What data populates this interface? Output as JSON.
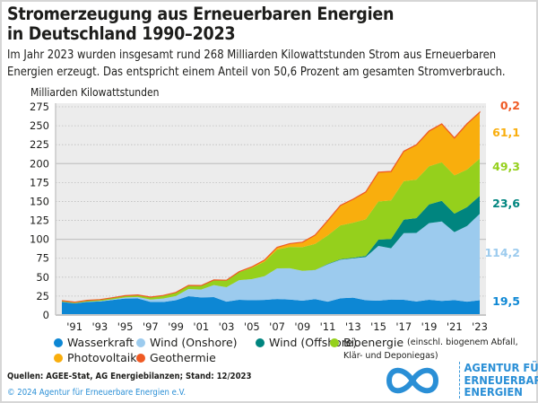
{
  "title_line1": "Stromerzeugung aus Erneuerbaren Energien",
  "title_line2": "in Deutschland 1990–2023",
  "subtitle_line1": "Im Jahr 2023 wurden insgesamt rund 268 Milliarden Kilowattstunden Strom aus Erneuerbaren",
  "subtitle_line2": "Energien erzeugt. Das entspricht einem Anteil von 50,6 Prozent am gesamten Stromverbrauch.",
  "legend": {
    "wasser": "Wasserkraft",
    "onshore": "Wind (Onshore)",
    "offshore": "Wind (Offshore)",
    "bio": "Bioenergie",
    "bio_note1": "(einschl. biogenem Abfall,",
    "bio_note2": "Klär- und Deponiegas)",
    "pv": "Photovoltaik",
    "geo": "Geothermie"
  },
  "source": "Quellen: AGEE-Stat, AG Energiebilanzen; Stand: 12/2023",
  "copyright": "© 2024 Agentur für Erneuerbare Energien e.V.",
  "logo": {
    "line1": "AGENTUR FÜR",
    "line2": "ERNEUERBARE",
    "line3": "ENERGIEN"
  },
  "chart_data": {
    "type": "area",
    "stacked": true,
    "title": "Stromerzeugung aus Erneuerbaren Energien in Deutschland 1990–2023",
    "ylabel": "Milliarden Kilowattstunden",
    "xlabel": "",
    "ylim": [
      0,
      275
    ],
    "yticks": [
      "0",
      "25",
      "50",
      "75",
      "100",
      "125",
      "150",
      "175",
      "200",
      "225",
      "250",
      "275"
    ],
    "xticks": [
      "'91",
      "'93",
      "'95",
      "'97",
      "'99",
      "'01",
      "'03",
      "'05",
      "'07",
      "'09",
      "'11",
      "'13",
      "'15",
      "'17",
      "'19",
      "'21",
      "'23"
    ],
    "grid": true,
    "legend_position": "bottom",
    "x": [
      1990,
      1991,
      1992,
      1993,
      1994,
      1995,
      1996,
      1997,
      1998,
      1999,
      2000,
      2001,
      2002,
      2003,
      2004,
      2005,
      2006,
      2007,
      2008,
      2009,
      2010,
      2011,
      2012,
      2013,
      2014,
      2015,
      2016,
      2017,
      2018,
      2019,
      2020,
      2021,
      2022,
      2023
    ],
    "series": [
      {
        "name": "Wasserkraft",
        "color": "#0d87d4",
        "end_label": "19,5",
        "values": [
          17.4,
          15.4,
          17.4,
          17.9,
          19.9,
          21.8,
          21.9,
          17.4,
          17.2,
          19.6,
          24.9,
          23.2,
          23.7,
          17.7,
          20.1,
          19.6,
          20.0,
          21.2,
          20.4,
          19.0,
          21.0,
          17.7,
          22.1,
          23.0,
          19.6,
          19.0,
          20.5,
          20.2,
          18.0,
          20.2,
          18.7,
          19.7,
          17.6,
          19.5
        ]
      },
      {
        "name": "Wind (Onshore)",
        "color": "#9ccbee",
        "end_label": "114,2",
        "values": [
          0.07,
          0.1,
          0.28,
          0.6,
          0.9,
          1.5,
          2.0,
          3.0,
          4.6,
          5.5,
          9.5,
          10.5,
          15.8,
          19.1,
          26.0,
          27.8,
          31.3,
          40.5,
          41.4,
          39.4,
          38.4,
          49.3,
          51.0,
          51.8,
          57.0,
          72.3,
          67.7,
          88.0,
          90.5,
          101.2,
          104.8,
          89.8,
          100.0,
          114.2
        ]
      },
      {
        "name": "Wind (Offshore)",
        "color": "#00857f",
        "end_label": "23,6",
        "values": [
          0,
          0,
          0,
          0,
          0,
          0,
          0,
          0,
          0,
          0,
          0,
          0,
          0,
          0,
          0,
          0,
          0,
          0,
          0,
          0.04,
          0.2,
          0.6,
          0.7,
          0.9,
          1.5,
          8.3,
          12.3,
          17.7,
          19.5,
          24.7,
          27.3,
          24.4,
          25.0,
          23.6
        ]
      },
      {
        "name": "Bioenergie (einschl. biogenem Abfall, Klär- und Deponiegas)",
        "color": "#95d01c",
        "end_label": "49,3",
        "values": [
          1.5,
          1.5,
          1.7,
          1.9,
          2.1,
          2.3,
          2.6,
          3.3,
          4.0,
          4.7,
          4.7,
          5.2,
          6.7,
          8.9,
          10.6,
          14.9,
          19.1,
          24.7,
          28.1,
          31.2,
          34.3,
          37.6,
          44.6,
          46.2,
          48.3,
          50.3,
          50.9,
          50.9,
          50.9,
          50.4,
          50.9,
          50.5,
          49.6,
          49.3
        ]
      },
      {
        "name": "Photovoltaik",
        "color": "#f9ae0d",
        "end_label": "61,1",
        "values": [
          0,
          0,
          0,
          0,
          0,
          0.01,
          0.01,
          0.02,
          0.04,
          0.04,
          0.06,
          0.08,
          0.16,
          0.3,
          0.56,
          1.3,
          2.2,
          3.1,
          4.4,
          6.6,
          11.7,
          19.6,
          26.4,
          31.0,
          36.1,
          38.7,
          38.1,
          39.4,
          45.8,
          46.4,
          50.6,
          49.3,
          60.3,
          61.1
        ]
      },
      {
        "name": "Geothermie",
        "color": "#ef5a24",
        "end_label": "0,2",
        "values": [
          0,
          0,
          0,
          0,
          0,
          0,
          0,
          0,
          0,
          0,
          0,
          0,
          0,
          0,
          0,
          0,
          0,
          0.02,
          0.02,
          0.02,
          0.03,
          0.02,
          0.03,
          0.08,
          0.1,
          0.13,
          0.18,
          0.16,
          0.18,
          0.2,
          0.23,
          0.25,
          0.23,
          0.2
        ]
      }
    ]
  }
}
